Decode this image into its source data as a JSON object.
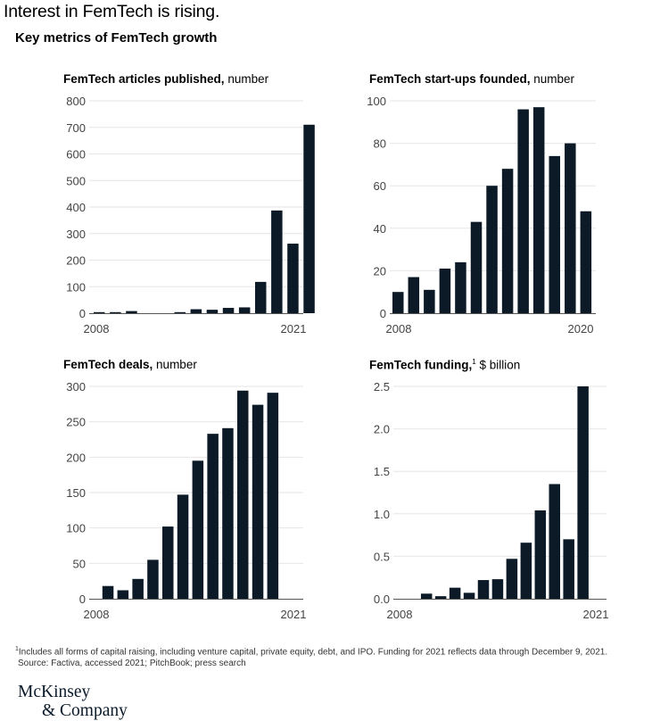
{
  "header": {
    "title": "Interest in FemTech is rising.",
    "subtitle": "Key metrics of FemTech growth"
  },
  "colors": {
    "bar": "#0b1a26",
    "grid": "#e6e6e6",
    "axis": "#555555",
    "tick": "#444444"
  },
  "chart_data": [
    {
      "type": "bar",
      "title": "FemTech articles published,",
      "unit": " number",
      "x": [
        2008,
        2009,
        2010,
        2011,
        2012,
        2013,
        2014,
        2015,
        2016,
        2017,
        2018,
        2019,
        2020,
        2021
      ],
      "values": [
        1,
        2,
        8,
        0,
        0,
        3,
        15,
        13,
        20,
        22,
        118,
        387,
        262,
        710
      ],
      "ylim": [
        0,
        800
      ],
      "yticks": [
        "0",
        "100",
        "200",
        "300",
        "400",
        "500",
        "600",
        "700",
        "800"
      ],
      "x_tick_labels": [
        "2008",
        "2021"
      ],
      "grid": true
    },
    {
      "type": "bar",
      "title": "FemTech start-ups founded,",
      "unit": " number",
      "x": [
        2008,
        2009,
        2010,
        2011,
        2012,
        2013,
        2014,
        2015,
        2016,
        2017,
        2018,
        2019,
        2020
      ],
      "values": [
        10,
        17,
        11,
        21,
        24,
        43,
        60,
        68,
        96,
        97,
        74,
        80,
        48
      ],
      "ylim": [
        0,
        100
      ],
      "yticks": [
        "0",
        "20",
        "40",
        "60",
        "80",
        "100"
      ],
      "x_tick_labels": [
        "2008",
        "2020"
      ],
      "grid": true
    },
    {
      "type": "bar",
      "title": "FemTech deals,",
      "unit": " number",
      "x": [
        2008,
        2009,
        2010,
        2011,
        2012,
        2013,
        2014,
        2015,
        2016,
        2017,
        2018,
        2019,
        2020,
        2021
      ],
      "values": [
        0,
        18,
        12,
        28,
        55,
        102,
        147,
        195,
        233,
        241,
        294,
        274,
        291,
        0
      ],
      "ylim": [
        0,
        300
      ],
      "yticks": [
        "0",
        "50",
        "100",
        "150",
        "200",
        "250",
        "300"
      ],
      "x_tick_labels": [
        "2008",
        "2021"
      ],
      "grid": true
    },
    {
      "type": "bar",
      "title": "FemTech funding,",
      "title_sup": "1",
      "unit": " $ billion",
      "x": [
        2008,
        2009,
        2010,
        2011,
        2012,
        2013,
        2014,
        2015,
        2016,
        2017,
        2018,
        2019,
        2020,
        2021
      ],
      "values": [
        0,
        0.06,
        0.03,
        0.13,
        0.07,
        0.22,
        0.23,
        0.47,
        0.66,
        1.04,
        1.35,
        0.7,
        2.5,
        0
      ],
      "ylim": [
        0,
        2.5
      ],
      "yticks": [
        "0.0",
        "0.5",
        "1.0",
        "1.5",
        "2.0",
        "2.5"
      ],
      "x_tick_labels": [
        "2008",
        "2021"
      ],
      "grid": true
    }
  ],
  "footnote": {
    "marker": "1",
    "line1": "Includes all forms of capital raising, including venture capital, private equity, debt, and IPO. Funding for 2021 reflects data through December 9, 2021.",
    "line2": "Source: Factiva, accessed 2021; PitchBook; press search"
  },
  "logo": {
    "line1": "McKinsey",
    "line2": "& Company"
  }
}
